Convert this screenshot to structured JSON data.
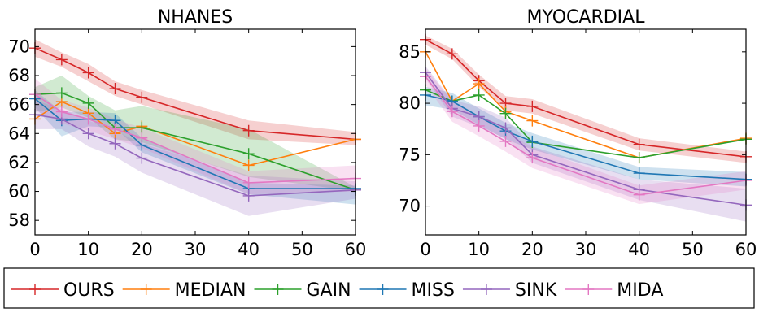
{
  "legend": {
    "items": [
      {
        "label": "OURS",
        "color": "#d62728"
      },
      {
        "label": "MEDIAN",
        "color": "#ff7f0e"
      },
      {
        "label": "GAIN",
        "color": "#2ca02c"
      },
      {
        "label": "MISS",
        "color": "#1f77b4"
      },
      {
        "label": "SINK",
        "color": "#9467bd"
      },
      {
        "label": "MIDA",
        "color": "#e377c2"
      }
    ],
    "placement": "bottom"
  },
  "chart_data": [
    {
      "type": "line",
      "title": "NHANES",
      "xlabel": "",
      "ylabel": "",
      "xlim": [
        0,
        60
      ],
      "ylim": [
        57,
        71.2
      ],
      "xticks": [
        0,
        10,
        20,
        30,
        40,
        50,
        60
      ],
      "yticks": [
        58,
        60,
        62,
        64,
        66,
        68,
        70
      ],
      "grid": false,
      "x": [
        0,
        5,
        10,
        15,
        20,
        40,
        60
      ],
      "series": [
        {
          "name": "OURS",
          "color": "#d62728",
          "values": [
            69.9,
            69.1,
            68.2,
            67.1,
            66.5,
            64.2,
            63.6
          ],
          "lower": [
            69.3,
            68.6,
            67.6,
            66.6,
            66.0,
            63.6,
            63.2
          ],
          "upper": [
            70.5,
            69.6,
            68.8,
            67.6,
            67.0,
            64.9,
            64.1
          ]
        },
        {
          "name": "MEDIAN",
          "color": "#ff7f0e",
          "values": [
            65.0,
            66.2,
            65.4,
            64.0,
            64.5,
            61.8,
            63.6
          ]
        },
        {
          "name": "GAIN",
          "color": "#2ca02c",
          "values": [
            66.7,
            66.8,
            66.1,
            64.4,
            64.4,
            62.6,
            60.1
          ],
          "lower": [
            65.5,
            65.8,
            65.1,
            63.6,
            63.4,
            61.0,
            60.0
          ],
          "upper": [
            67.2,
            68.0,
            66.6,
            65.6,
            65.9,
            64.3,
            60.3
          ]
        },
        {
          "name": "MISS",
          "color": "#1f77b4",
          "values": [
            66.4,
            64.9,
            65.0,
            64.9,
            63.2,
            60.2,
            60.2
          ],
          "lower": [
            65.8,
            63.8,
            64.5,
            64.4,
            62.7,
            59.8,
            59.1
          ],
          "upper": [
            67.0,
            65.5,
            65.5,
            65.4,
            63.7,
            60.6,
            60.4
          ]
        },
        {
          "name": "SINK",
          "color": "#9467bd",
          "values": [
            65.3,
            65.0,
            64.0,
            63.3,
            62.3,
            59.7,
            60.1
          ],
          "lower": [
            64.3,
            64.3,
            63.1,
            62.4,
            61.3,
            58.3,
            59.5
          ],
          "upper": [
            66.3,
            65.7,
            64.9,
            64.2,
            63.3,
            61.1,
            60.7
          ]
        },
        {
          "name": "MIDA",
          "color": "#e377c2",
          "values": [
            66.7,
            65.5,
            65.0,
            64.3,
            63.7,
            60.6,
            60.9
          ],
          "lower": [
            65.6,
            64.7,
            64.2,
            63.6,
            63.0,
            59.8,
            60.0
          ],
          "upper": [
            67.8,
            66.3,
            65.8,
            65.0,
            64.4,
            61.4,
            61.8
          ]
        }
      ]
    },
    {
      "type": "line",
      "title": "MYOCARDIAL",
      "xlabel": "",
      "ylabel": "",
      "xlim": [
        0,
        60
      ],
      "ylim": [
        67.2,
        87.2
      ],
      "xticks": [
        0,
        10,
        20,
        30,
        40,
        50,
        60
      ],
      "yticks": [
        70,
        75,
        80,
        85
      ],
      "grid": false,
      "x": [
        0,
        5,
        10,
        15,
        20,
        40,
        60
      ],
      "series": [
        {
          "name": "OURS",
          "color": "#d62728",
          "values": [
            86.2,
            84.8,
            82.2,
            80.0,
            79.7,
            76.0,
            74.8
          ],
          "lower": [
            85.7,
            84.3,
            81.6,
            79.3,
            79.0,
            75.4,
            74.2
          ],
          "upper": [
            86.6,
            85.3,
            82.8,
            80.7,
            80.4,
            76.6,
            75.3
          ]
        },
        {
          "name": "MEDIAN",
          "color": "#ff7f0e",
          "values": [
            85.0,
            80.2,
            81.9,
            79.2,
            78.3,
            74.7,
            76.6
          ]
        },
        {
          "name": "GAIN",
          "color": "#2ca02c",
          "values": [
            81.3,
            80.2,
            80.8,
            79.0,
            76.2,
            74.7,
            76.5
          ]
        },
        {
          "name": "MISS",
          "color": "#1f77b4",
          "values": [
            80.8,
            80.2,
            78.7,
            77.3,
            76.3,
            73.2,
            72.6
          ],
          "lower": [
            79.8,
            79.4,
            77.9,
            76.5,
            75.5,
            72.6,
            71.9
          ],
          "upper": [
            81.6,
            81.0,
            79.5,
            78.1,
            77.1,
            73.8,
            73.3
          ]
        },
        {
          "name": "SINK",
          "color": "#9467bd",
          "values": [
            83.0,
            79.5,
            78.7,
            77.6,
            75.0,
            71.6,
            70.1
          ],
          "lower": [
            82.4,
            78.7,
            77.7,
            76.6,
            74.2,
            70.6,
            68.5
          ],
          "upper": [
            83.6,
            80.3,
            79.7,
            78.6,
            75.8,
            72.6,
            71.7
          ]
        },
        {
          "name": "MIDA",
          "color": "#e377c2",
          "values": [
            82.6,
            79.2,
            77.8,
            76.3,
            74.7,
            71.1,
            72.5
          ],
          "lower": [
            81.8,
            78.2,
            76.8,
            75.3,
            73.7,
            70.2,
            71.6
          ],
          "upper": [
            83.4,
            80.2,
            78.8,
            77.3,
            75.7,
            72.0,
            73.4
          ]
        }
      ]
    }
  ]
}
